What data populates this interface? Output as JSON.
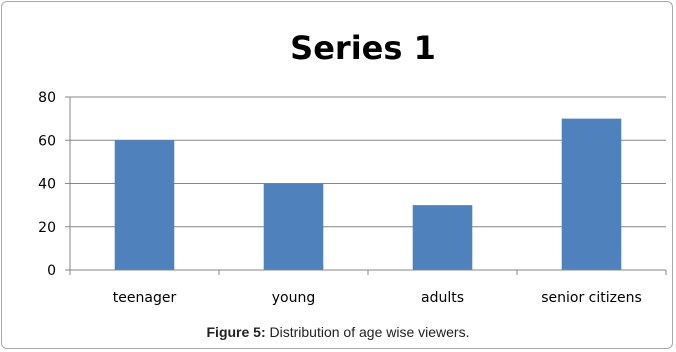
{
  "chart_data": {
    "type": "bar",
    "title": "Series 1",
    "categories": [
      "teenager",
      "young",
      "adults",
      "senior citizens"
    ],
    "values": [
      60,
      40,
      30,
      70
    ],
    "ylim": [
      0,
      80
    ],
    "yticks": [
      0,
      20,
      40,
      60,
      80
    ],
    "grid": true,
    "legend": "none",
    "bar_color": "#4F81BD",
    "xlabel": "",
    "ylabel": ""
  },
  "caption": {
    "label": "Figure 5:",
    "text": " Distribution of age wise viewers."
  }
}
